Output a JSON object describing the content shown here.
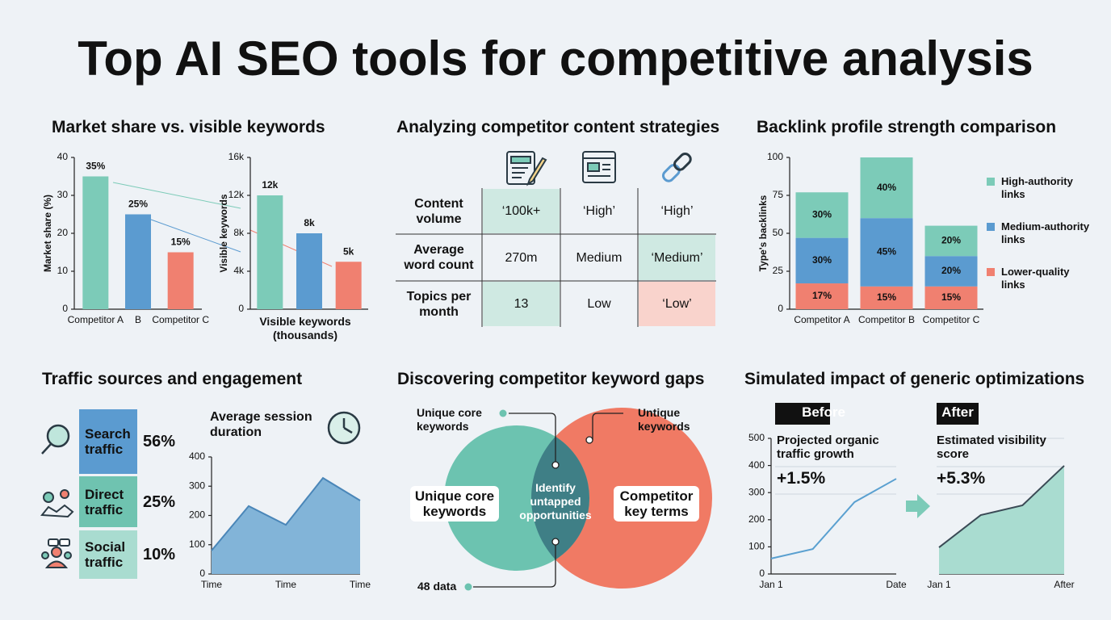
{
  "title": "Top AI SEO tools for competitive analysis",
  "chart_data": [
    {
      "type": "bar",
      "title": "Market share vs. visible keywords",
      "categories": [
        "Competitor A",
        "B",
        "Competitor C"
      ],
      "values": [
        35,
        25,
        15
      ],
      "value_labels": [
        "35%",
        "25%",
        "15%"
      ],
      "colors": [
        "#7ccbb8",
        "#5b9bd0",
        "#f08070"
      ],
      "ylabel": "Market share (%)",
      "ylim": [
        0,
        40
      ],
      "yticks": [
        0,
        10,
        20,
        30,
        40
      ]
    },
    {
      "type": "bar",
      "values": [
        12000,
        8000,
        5000
      ],
      "value_labels": [
        "12k",
        "8k",
        "5k"
      ],
      "colors": [
        "#7ccbb8",
        "#5b9bd0",
        "#f08070"
      ],
      "ylabel": "Visible keywords",
      "xlabel": "Visible keywords (thousands)",
      "ylim": [
        0,
        16000
      ],
      "yticks": [
        0,
        {
          "value": 4000,
          "label": "4k"
        },
        {
          "value": 8000,
          "label": "8k"
        },
        {
          "value": 12000,
          "label": "12k"
        },
        {
          "value": 16000,
          "label": "16k"
        }
      ]
    },
    {
      "type": "stacked_bar",
      "title": "Backlink profile strength comparison",
      "ylabel": "Type's backlinks",
      "categories": [
        "Competitor A",
        "Competitor B",
        "Competitor C"
      ],
      "series": [
        {
          "name": "Lower-quality links",
          "color": "#f08070",
          "values": [
            17,
            15,
            15
          ],
          "value_labels": [
            "17%",
            "15%",
            "15%"
          ]
        },
        {
          "name": "Medium-authority links",
          "color": "#5b9bd0",
          "values": [
            30,
            45,
            20
          ],
          "value_labels": [
            "30%",
            "45%",
            "20%"
          ]
        },
        {
          "name": "High-authority links",
          "color": "#7ccbb8",
          "values": [
            30,
            40,
            20
          ],
          "value_labels": [
            "30%",
            "40%",
            "20%"
          ]
        }
      ],
      "ylim": [
        0,
        100
      ],
      "yticks": [
        0,
        25,
        50,
        75,
        100
      ]
    },
    {
      "type": "area",
      "title": "Average session duration",
      "categories": [
        "Time",
        null,
        "Time",
        null,
        "Time"
      ],
      "values": [
        80,
        232,
        168,
        328,
        251
      ],
      "color": "#82b4d8",
      "line_color": "#4a86b8",
      "ylim": [
        0,
        400
      ],
      "yticks": [
        0,
        100,
        200,
        300,
        400
      ]
    },
    {
      "type": "line",
      "label": "Before",
      "title": "Projected organic traffic growth",
      "annotation": "+1.5%",
      "categories": [
        "Jan 1",
        null,
        null,
        "Date"
      ],
      "values": [
        57,
        92,
        265,
        351
      ],
      "color": "#5aa0d0",
      "ylim": [
        0,
        500
      ],
      "yticks": [
        0,
        100,
        200,
        300,
        400,
        500
      ]
    },
    {
      "type": "area",
      "label": "After",
      "title": "Estimated visibility score",
      "annotation": "+5.3%",
      "categories": [
        "Jan 1",
        null,
        null,
        "After"
      ],
      "values": [
        98,
        217,
        253,
        399
      ],
      "color": "#a9dcd0",
      "line_color": "#3a4a55",
      "ylim": [
        0,
        500
      ]
    }
  ],
  "content_strategies": {
    "title": "Analyzing competitor content strategies",
    "rows": [
      [
        "Content volume",
        "‘100k+",
        "‘High’",
        "‘High’"
      ],
      [
        "Average word count",
        "270m",
        "Medium",
        "‘Medium’"
      ],
      [
        "Topics per month",
        "13",
        "Low",
        "‘Low’"
      ]
    ]
  },
  "traffic_sources": {
    "title": "Traffic sources and engagement",
    "items": [
      {
        "label": "Search traffic",
        "share": "56%"
      },
      {
        "label": "Direct traffic",
        "share": "25%"
      },
      {
        "label": "Social traffic",
        "share": "10%"
      }
    ]
  },
  "keyword_gaps": {
    "title": "Discovering competitor keyword gaps",
    "left": "Unique core keywords",
    "right": "Competitor key terms",
    "center": "Identify untapped opportunities",
    "callouts": [
      "Unique core keywords",
      "Untique keywords",
      "48 data"
    ]
  },
  "impact_title": "Simulated impact of generic optimizations"
}
